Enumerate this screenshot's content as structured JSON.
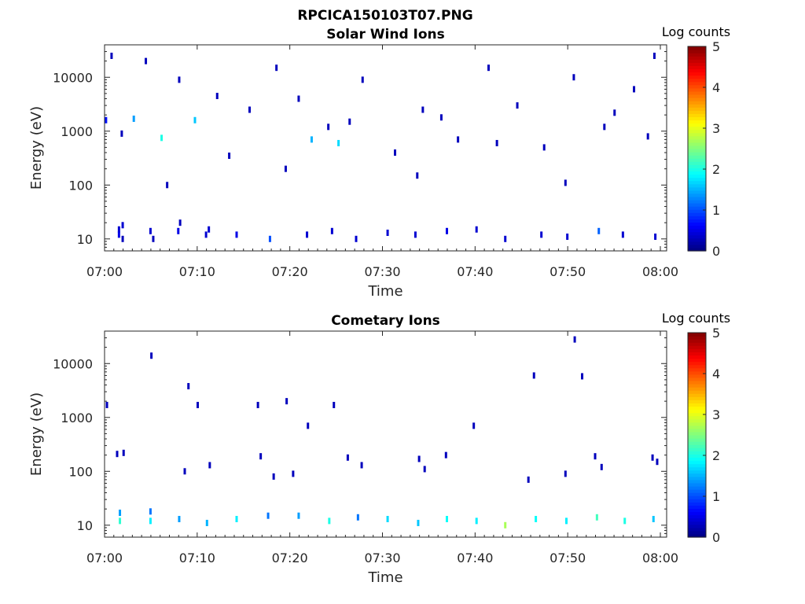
{
  "figure": {
    "title": "RPCICA150103T07.PNG"
  },
  "chart_data": [
    {
      "type": "heatmap",
      "title": "Solar Wind Ions",
      "xlabel": "Time",
      "ylabel": "Energy (eV)",
      "x_range": [
        "07:00",
        "08:00"
      ],
      "x_ticks": [
        "07:00",
        "07:10",
        "07:20",
        "07:30",
        "07:40",
        "07:50",
        "08:00"
      ],
      "y_scale": "log",
      "y_range": [
        6,
        40000
      ],
      "y_ticks": [
        10,
        100,
        1000,
        10000
      ],
      "y_tick_labels": [
        "10",
        "100",
        "1000",
        "10000"
      ],
      "colorbar": {
        "label": "Log counts",
        "range": [
          0,
          5
        ],
        "ticks": [
          "0",
          "1",
          "2",
          "3",
          "4",
          "5"
        ],
        "colormap": "jet"
      },
      "points": [
        {
          "t": 1.6,
          "e": 15,
          "c": 0.4
        },
        {
          "t": 1.6,
          "e": 12,
          "c": 0.5
        },
        {
          "t": 2.0,
          "e": 18,
          "c": 0.4
        },
        {
          "t": 2.0,
          "e": 10,
          "c": 0.3
        },
        {
          "t": 5.0,
          "e": 14,
          "c": 0.4
        },
        {
          "t": 5.3,
          "e": 10,
          "c": 0.3
        },
        {
          "t": 8.0,
          "e": 14,
          "c": 0.5
        },
        {
          "t": 8.2,
          "e": 20,
          "c": 0.3
        },
        {
          "t": 11.0,
          "e": 12,
          "c": 0.4
        },
        {
          "t": 11.3,
          "e": 15,
          "c": 0.4
        },
        {
          "t": 14.3,
          "e": 12,
          "c": 0.5
        },
        {
          "t": 17.9,
          "e": 10,
          "c": 1.0
        },
        {
          "t": 21.9,
          "e": 12,
          "c": 0.4
        },
        {
          "t": 24.6,
          "e": 14,
          "c": 0.4
        },
        {
          "t": 27.2,
          "e": 10,
          "c": 0.4
        },
        {
          "t": 30.6,
          "e": 13,
          "c": 0.4
        },
        {
          "t": 33.6,
          "e": 12,
          "c": 0.4
        },
        {
          "t": 37.0,
          "e": 14,
          "c": 0.5
        },
        {
          "t": 40.2,
          "e": 15,
          "c": 0.4
        },
        {
          "t": 43.3,
          "e": 10,
          "c": 0.4
        },
        {
          "t": 47.2,
          "e": 12,
          "c": 0.4
        },
        {
          "t": 50.0,
          "e": 11,
          "c": 0.4
        },
        {
          "t": 53.4,
          "e": 14,
          "c": 1.1
        },
        {
          "t": 56.0,
          "e": 12,
          "c": 0.4
        },
        {
          "t": 59.5,
          "e": 11,
          "c": 0.4
        },
        {
          "t": 6.2,
          "e": 750,
          "c": 2.0
        },
        {
          "t": 9.8,
          "e": 1600,
          "c": 1.6
        },
        {
          "t": 22.4,
          "e": 700,
          "c": 1.5
        },
        {
          "t": 25.3,
          "e": 600,
          "c": 1.7
        },
        {
          "t": 3.2,
          "e": 1700,
          "c": 1.4
        },
        {
          "t": 0.2,
          "e": 1600,
          "c": 0.7
        },
        {
          "t": 0.8,
          "e": 25000,
          "c": 0.3
        },
        {
          "t": 4.5,
          "e": 20000,
          "c": 0.3
        },
        {
          "t": 8.1,
          "e": 9000,
          "c": 0.3
        },
        {
          "t": 12.2,
          "e": 4500,
          "c": 0.3
        },
        {
          "t": 15.7,
          "e": 2500,
          "c": 0.3
        },
        {
          "t": 18.6,
          "e": 15000,
          "c": 0.3
        },
        {
          "t": 21.0,
          "e": 4000,
          "c": 0.3
        },
        {
          "t": 24.2,
          "e": 1200,
          "c": 0.3
        },
        {
          "t": 27.9,
          "e": 9000,
          "c": 0.3
        },
        {
          "t": 31.4,
          "e": 400,
          "c": 0.3
        },
        {
          "t": 34.4,
          "e": 2500,
          "c": 0.3
        },
        {
          "t": 38.2,
          "e": 700,
          "c": 0.3
        },
        {
          "t": 41.5,
          "e": 15000,
          "c": 0.3
        },
        {
          "t": 44.6,
          "e": 3000,
          "c": 0.3
        },
        {
          "t": 47.5,
          "e": 500,
          "c": 0.3
        },
        {
          "t": 50.7,
          "e": 10000,
          "c": 0.3
        },
        {
          "t": 54.0,
          "e": 1200,
          "c": 0.3
        },
        {
          "t": 57.2,
          "e": 6000,
          "c": 0.3
        },
        {
          "t": 59.4,
          "e": 25000,
          "c": 0.3
        },
        {
          "t": 1.9,
          "e": 900,
          "c": 0.3
        },
        {
          "t": 6.8,
          "e": 100,
          "c": 0.3
        },
        {
          "t": 13.5,
          "e": 350,
          "c": 0.3
        },
        {
          "t": 19.6,
          "e": 200,
          "c": 0.3
        },
        {
          "t": 26.5,
          "e": 1500,
          "c": 0.3
        },
        {
          "t": 33.8,
          "e": 150,
          "c": 0.3
        },
        {
          "t": 36.4,
          "e": 1800,
          "c": 0.3
        },
        {
          "t": 42.4,
          "e": 600,
          "c": 0.3
        },
        {
          "t": 49.8,
          "e": 110,
          "c": 0.3
        },
        {
          "t": 55.1,
          "e": 2200,
          "c": 0.3
        },
        {
          "t": 58.7,
          "e": 800,
          "c": 0.3
        }
      ]
    },
    {
      "type": "heatmap",
      "title": "Cometary Ions",
      "xlabel": "Time",
      "ylabel": "Energy (eV)",
      "x_range": [
        "07:00",
        "08:00"
      ],
      "x_ticks": [
        "07:00",
        "07:10",
        "07:20",
        "07:30",
        "07:40",
        "07:50",
        "08:00"
      ],
      "y_scale": "log",
      "y_range": [
        6,
        40000
      ],
      "y_ticks": [
        10,
        100,
        1000,
        10000
      ],
      "y_tick_labels": [
        "10",
        "100",
        "1000",
        "10000"
      ],
      "colorbar": {
        "label": "Log counts",
        "range": [
          0,
          5
        ],
        "ticks": [
          "0",
          "1",
          "2",
          "3",
          "4",
          "5"
        ],
        "colormap": "jet"
      },
      "points": [
        {
          "t": 1.7,
          "e": 12,
          "c": 2.1
        },
        {
          "t": 1.7,
          "e": 17,
          "c": 1.4
        },
        {
          "t": 5.0,
          "e": 12,
          "c": 1.8
        },
        {
          "t": 5.0,
          "e": 18,
          "c": 1.2
        },
        {
          "t": 8.1,
          "e": 13,
          "c": 1.4
        },
        {
          "t": 11.1,
          "e": 11,
          "c": 1.5
        },
        {
          "t": 14.3,
          "e": 13,
          "c": 1.8
        },
        {
          "t": 17.7,
          "e": 15,
          "c": 1.2
        },
        {
          "t": 21.0,
          "e": 15,
          "c": 1.4
        },
        {
          "t": 24.3,
          "e": 12,
          "c": 2.0
        },
        {
          "t": 27.4,
          "e": 14,
          "c": 1.2
        },
        {
          "t": 30.6,
          "e": 13,
          "c": 1.7
        },
        {
          "t": 33.9,
          "e": 11,
          "c": 1.6
        },
        {
          "t": 37.0,
          "e": 13,
          "c": 1.9
        },
        {
          "t": 40.2,
          "e": 12,
          "c": 1.8
        },
        {
          "t": 43.3,
          "e": 10,
          "c": 2.7
        },
        {
          "t": 46.6,
          "e": 13,
          "c": 1.9
        },
        {
          "t": 49.9,
          "e": 12,
          "c": 1.8
        },
        {
          "t": 53.2,
          "e": 14,
          "c": 2.2
        },
        {
          "t": 56.2,
          "e": 12,
          "c": 2.0
        },
        {
          "t": 59.3,
          "e": 13,
          "c": 1.6
        },
        {
          "t": 5.1,
          "e": 14000,
          "c": 0.3
        },
        {
          "t": 9.1,
          "e": 3800,
          "c": 0.3
        },
        {
          "t": 10.1,
          "e": 1700,
          "c": 0.3
        },
        {
          "t": 16.6,
          "e": 1700,
          "c": 0.3
        },
        {
          "t": 19.7,
          "e": 2000,
          "c": 0.3
        },
        {
          "t": 22.0,
          "e": 700,
          "c": 0.3
        },
        {
          "t": 24.8,
          "e": 1700,
          "c": 0.3
        },
        {
          "t": 0.3,
          "e": 1700,
          "c": 0.3
        },
        {
          "t": 39.9,
          "e": 700,
          "c": 0.3
        },
        {
          "t": 46.4,
          "e": 6000,
          "c": 0.3
        },
        {
          "t": 50.8,
          "e": 28000,
          "c": 0.3
        },
        {
          "t": 51.6,
          "e": 5800,
          "c": 0.3
        },
        {
          "t": 1.4,
          "e": 210,
          "c": 0.3
        },
        {
          "t": 2.1,
          "e": 220,
          "c": 0.3
        },
        {
          "t": 8.7,
          "e": 100,
          "c": 0.3
        },
        {
          "t": 11.4,
          "e": 130,
          "c": 0.3
        },
        {
          "t": 16.9,
          "e": 190,
          "c": 0.3
        },
        {
          "t": 18.3,
          "e": 80,
          "c": 0.3
        },
        {
          "t": 20.4,
          "e": 90,
          "c": 0.3
        },
        {
          "t": 26.3,
          "e": 180,
          "c": 0.3
        },
        {
          "t": 27.8,
          "e": 130,
          "c": 0.3
        },
        {
          "t": 34.0,
          "e": 170,
          "c": 0.3
        },
        {
          "t": 34.6,
          "e": 110,
          "c": 0.3
        },
        {
          "t": 36.9,
          "e": 200,
          "c": 0.3
        },
        {
          "t": 45.8,
          "e": 70,
          "c": 0.3
        },
        {
          "t": 49.8,
          "e": 90,
          "c": 0.3
        },
        {
          "t": 53.0,
          "e": 190,
          "c": 0.3
        },
        {
          "t": 53.7,
          "e": 120,
          "c": 0.3
        },
        {
          "t": 59.7,
          "e": 150,
          "c": 0.3
        },
        {
          "t": 59.2,
          "e": 180,
          "c": 0.3
        }
      ]
    }
  ]
}
